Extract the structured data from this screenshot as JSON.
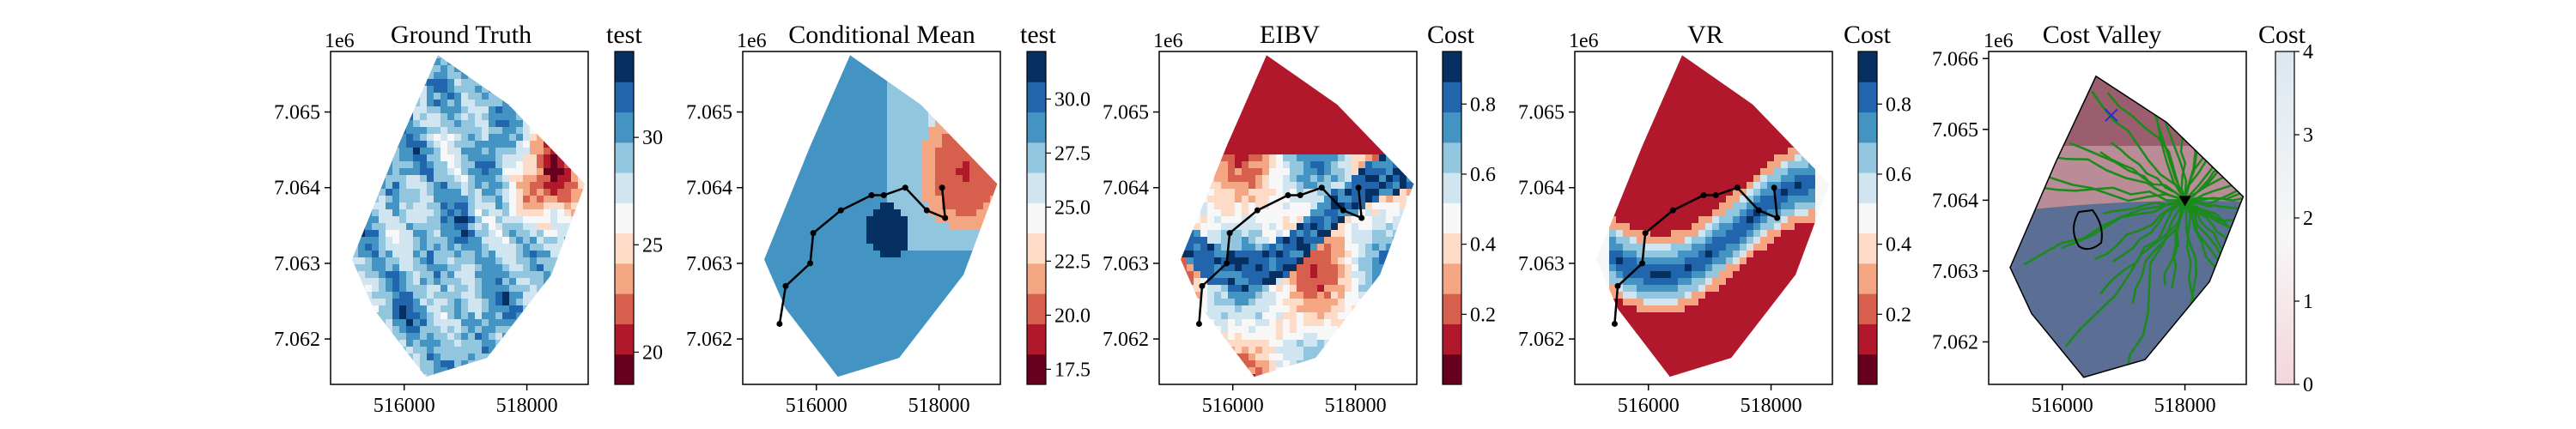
{
  "figure": {
    "x_offset_note": "",
    "y_offset_note": "1e6"
  },
  "colors": {
    "rdbu": [
      "#67001f",
      "#b2182b",
      "#d6604d",
      "#f4a582",
      "#fddbc7",
      "#f7f7f7",
      "#d1e5f0",
      "#92c5de",
      "#4393c3",
      "#2166ac",
      "#053061"
    ],
    "path": "#000000",
    "valley_lines": "#1a8a1a",
    "marker_x": "#2b2bd6",
    "marker_tri": "#000000"
  },
  "chart_data": [
    {
      "type": "heatmap",
      "title": "Ground Truth",
      "colorbar_label": "test",
      "colorbar_ticks": [
        "20",
        "25",
        "30"
      ],
      "colorbar_tick_values": [
        20,
        25,
        30
      ],
      "colorbar_range": [
        18.5,
        34
      ],
      "xlabel": "",
      "ylabel": "",
      "x_ticks": [
        "516000",
        "518000"
      ],
      "x_tick_values": [
        516000,
        518000
      ],
      "y_ticks": [
        "7.062",
        "7.063",
        "7.064",
        "7.065"
      ],
      "y_tick_values": [
        7.062,
        7.063,
        7.064,
        7.065
      ],
      "y_offset": "1e6",
      "xlim": [
        514800,
        519000
      ],
      "ylim": [
        7.0614,
        7.0658
      ],
      "path": []
    },
    {
      "type": "heatmap",
      "title": "Conditional Mean",
      "colorbar_label": "test",
      "colorbar_ticks": [
        "17.5",
        "20.0",
        "22.5",
        "25.0",
        "27.5",
        "30.0"
      ],
      "colorbar_tick_values": [
        17.5,
        20.0,
        22.5,
        25.0,
        27.5,
        30.0
      ],
      "colorbar_range": [
        16.8,
        32.2
      ],
      "xlabel": "",
      "ylabel": "",
      "x_ticks": [
        "516000",
        "518000"
      ],
      "x_tick_values": [
        516000,
        518000
      ],
      "y_ticks": [
        "7.062",
        "7.063",
        "7.064",
        "7.065"
      ],
      "y_tick_values": [
        7.062,
        7.063,
        7.064,
        7.065
      ],
      "y_offset": "1e6",
      "xlim": [
        514800,
        519000
      ],
      "ylim": [
        7.0614,
        7.0658
      ],
      "path": [
        [
          515400,
          7.0622
        ],
        [
          515500,
          7.0627
        ],
        [
          515900,
          7.063
        ],
        [
          515950,
          7.0634
        ],
        [
          516400,
          7.0637
        ],
        [
          516900,
          7.0639
        ],
        [
          517100,
          7.0639
        ],
        [
          517450,
          7.064
        ],
        [
          517800,
          7.0637
        ],
        [
          518100,
          7.0636
        ],
        [
          518050,
          7.064
        ]
      ]
    },
    {
      "type": "heatmap",
      "title": "EIBV",
      "colorbar_label": "Cost",
      "colorbar_ticks": [
        "0.2",
        "0.4",
        "0.6",
        "0.8"
      ],
      "colorbar_tick_values": [
        0.2,
        0.4,
        0.6,
        0.8
      ],
      "colorbar_range": [
        0,
        0.95
      ],
      "xlabel": "",
      "ylabel": "",
      "x_ticks": [
        "516000",
        "518000"
      ],
      "x_tick_values": [
        516000,
        518000
      ],
      "y_ticks": [
        "7.062",
        "7.063",
        "7.064",
        "7.065"
      ],
      "y_tick_values": [
        7.062,
        7.063,
        7.064,
        7.065
      ],
      "y_offset": "1e6",
      "xlim": [
        514800,
        519000
      ],
      "ylim": [
        7.0614,
        7.0658
      ],
      "path": [
        [
          515450,
          7.0622
        ],
        [
          515500,
          7.0627
        ],
        [
          515900,
          7.063
        ],
        [
          515950,
          7.0634
        ],
        [
          516400,
          7.0637
        ],
        [
          516900,
          7.0639
        ],
        [
          517100,
          7.0639
        ],
        [
          517450,
          7.064
        ],
        [
          517800,
          7.0637
        ],
        [
          518100,
          7.0636
        ],
        [
          518050,
          7.064
        ]
      ]
    },
    {
      "type": "heatmap",
      "title": "VR",
      "colorbar_label": "Cost",
      "colorbar_ticks": [
        "0.2",
        "0.4",
        "0.6",
        "0.8"
      ],
      "colorbar_tick_values": [
        0.2,
        0.4,
        0.6,
        0.8
      ],
      "colorbar_range": [
        0,
        0.95
      ],
      "xlabel": "",
      "ylabel": "",
      "x_ticks": [
        "516000",
        "518000"
      ],
      "x_tick_values": [
        516000,
        518000
      ],
      "y_ticks": [
        "7.062",
        "7.063",
        "7.064",
        "7.065"
      ],
      "y_tick_values": [
        7.062,
        7.063,
        7.064,
        7.065
      ],
      "y_offset": "1e6",
      "xlim": [
        514800,
        519000
      ],
      "ylim": [
        7.0614,
        7.0658
      ],
      "path": [
        [
          515450,
          7.0622
        ],
        [
          515500,
          7.0627
        ],
        [
          515900,
          7.063
        ],
        [
          515950,
          7.0634
        ],
        [
          516400,
          7.0637
        ],
        [
          516900,
          7.0639
        ],
        [
          517100,
          7.0639
        ],
        [
          517450,
          7.064
        ],
        [
          517800,
          7.0637
        ],
        [
          518100,
          7.0636
        ],
        [
          518050,
          7.064
        ]
      ]
    },
    {
      "type": "heatmap",
      "title": "Cost Valley",
      "colorbar_label": "Cost",
      "colorbar_ticks": [
        "0",
        "1",
        "2",
        "3",
        "4"
      ],
      "colorbar_tick_values": [
        0,
        1,
        2,
        3,
        4
      ],
      "colorbar_range": [
        0,
        4
      ],
      "xlabel": "",
      "ylabel": "",
      "x_ticks": [
        "516000",
        "518000"
      ],
      "x_tick_values": [
        516000,
        518000
      ],
      "y_ticks": [
        "7.062",
        "7.063",
        "7.064",
        "7.065",
        "7.066"
      ],
      "y_tick_values": [
        7.062,
        7.063,
        7.064,
        7.065,
        7.066
      ],
      "y_offset": "1e6",
      "xlim": [
        514800,
        519000
      ],
      "ylim": [
        7.0614,
        7.0661
      ],
      "current_location": [
        516800,
        7.0652
      ],
      "target_location": [
        518000,
        7.064
      ],
      "path": []
    }
  ]
}
